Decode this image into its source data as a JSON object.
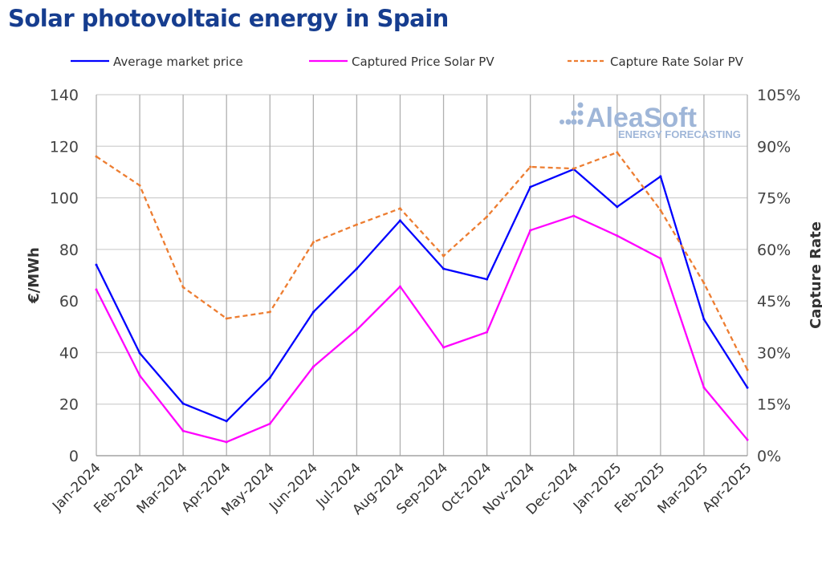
{
  "title": "Solar photovoltaic energy in Spain",
  "logo": {
    "text": "AleaSoft",
    "subtext": "ENERGY FORECASTING"
  },
  "chart_data": {
    "type": "line",
    "title": "Solar photovoltaic energy in Spain",
    "categories": [
      "Jan-2024",
      "Feb-2024",
      "Mar-2024",
      "Apr-2024",
      "May-2024",
      "Jun-2024",
      "Jul-2024",
      "Aug-2024",
      "Sep-2024",
      "Oct-2024",
      "Nov-2024",
      "Dec-2024",
      "Jan-2025",
      "Feb-2025",
      "Mar-2025",
      "Apr-2025"
    ],
    "ylabel": "€/MWh",
    "y2label": "Capture Rate",
    "ylim": [
      0,
      140
    ],
    "y2lim": [
      0,
      105
    ],
    "yticks": [
      "0",
      "20",
      "40",
      "60",
      "80",
      "100",
      "120",
      "140"
    ],
    "y2ticks": [
      "0%",
      "15%",
      "30%",
      "45%",
      "60%",
      "75%",
      "90%",
      "105%"
    ],
    "grid": true,
    "legend": "top",
    "series": [
      {
        "name": "Average market price",
        "axis": "left",
        "color": "#0000ff",
        "dash": false,
        "values": [
          74.0,
          39.8,
          20.2,
          13.4,
          30.2,
          55.7,
          72.5,
          91.2,
          72.5,
          68.4,
          104.2,
          111.1,
          96.5,
          108.3,
          52.9,
          26.4
        ]
      },
      {
        "name": "Captured Price Solar PV",
        "axis": "left",
        "color": "#ff00ff",
        "dash": false,
        "values": [
          64.4,
          31.1,
          9.6,
          5.3,
          12.4,
          34.5,
          48.8,
          65.6,
          42.0,
          47.9,
          87.4,
          93.0,
          85.3,
          76.5,
          26.4,
          6.2
        ]
      },
      {
        "name": "Capture Rate Solar PV",
        "axis": "right",
        "color": "#ed7d31",
        "dash": true,
        "values": [
          87.0,
          78.6,
          49.0,
          39.9,
          41.8,
          62.1,
          67.2,
          71.9,
          58.1,
          69.5,
          84.0,
          83.5,
          88.2,
          71.4,
          50.2,
          25.0
        ]
      }
    ]
  }
}
